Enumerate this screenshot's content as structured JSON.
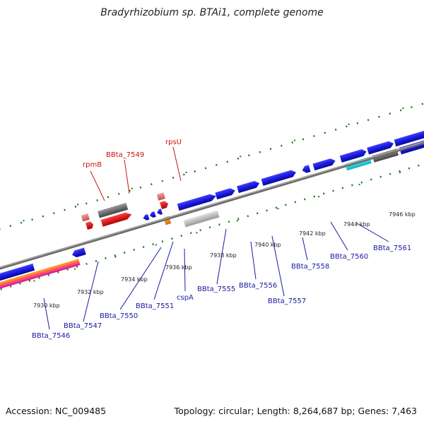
{
  "title": "Bradyrhizobium sp. BTAi1, complete genome",
  "footer": {
    "accession": "Accession: NC_009485",
    "summary": "Topology: circular; Length: 8,264,687 bp; Genes: 7,463"
  },
  "kbp_labels": [
    "7930 kbp",
    "7932 kbp",
    "7934 kbp",
    "7936 kbp",
    "7938 kbp",
    "7940 kbp",
    "7942 kbp",
    "7944 kbp",
    "7946 kbp"
  ],
  "genes_top": [
    {
      "label": "rpmB",
      "color": "#cc1111"
    },
    {
      "label": "BBta_7549",
      "color": "#cc1111"
    },
    {
      "label": "rpsU",
      "color": "#cc1111"
    }
  ],
  "genes_bottom": [
    {
      "label": "BBta_7546"
    },
    {
      "label": "BBta_7547"
    },
    {
      "label": "BBta_7550"
    },
    {
      "label": "BBta_7551"
    },
    {
      "label": "cspA"
    },
    {
      "label": "BBta_7555"
    },
    {
      "label": "BBta_7556"
    },
    {
      "label": "BBta_7557"
    },
    {
      "label": "BBta_7558"
    },
    {
      "label": "BBta_7560"
    },
    {
      "label": "BBta_7561"
    }
  ],
  "colors": {
    "forward_gene": "#1a1ae0",
    "rna_gene": "#e01010",
    "pseudo_gene": "#707070",
    "backbone": "#888888",
    "tick": "#1a7a1a"
  }
}
